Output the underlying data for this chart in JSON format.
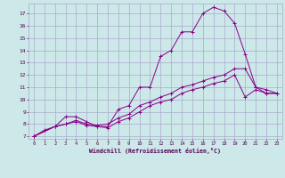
{
  "xlabel": "Windchill (Refroidissement éolien,°C)",
  "bg_color": "#cce8e8",
  "grid_color": "#aaaacc",
  "line_color": "#880088",
  "xlim": [
    -0.5,
    23.5
  ],
  "ylim": [
    6.8,
    17.8
  ],
  "xticks": [
    0,
    1,
    2,
    3,
    4,
    5,
    6,
    7,
    8,
    9,
    10,
    11,
    12,
    13,
    14,
    15,
    16,
    17,
    18,
    19,
    20,
    21,
    22,
    23
  ],
  "yticks": [
    7,
    8,
    9,
    10,
    11,
    12,
    13,
    14,
    15,
    16,
    17
  ],
  "curves": [
    {
      "x": [
        0,
        1,
        2,
        3,
        4,
        5,
        6,
        7,
        8,
        9,
        10,
        11,
        12,
        13,
        14,
        15,
        16,
        17,
        18,
        19,
        20,
        21,
        22,
        23
      ],
      "y": [
        7.0,
        7.5,
        7.8,
        8.6,
        8.6,
        8.2,
        7.8,
        7.8,
        9.2,
        9.5,
        11.0,
        11.0,
        13.5,
        14.0,
        15.5,
        15.5,
        17.0,
        17.5,
        17.2,
        16.2,
        13.7,
        11.0,
        10.5,
        10.5
      ]
    },
    {
      "x": [
        0,
        2,
        3,
        4,
        5,
        6,
        7,
        8,
        9,
        10,
        11,
        12,
        13,
        14,
        15,
        16,
        17,
        18,
        19,
        20,
        21,
        22,
        23
      ],
      "y": [
        7.0,
        7.8,
        8.0,
        8.3,
        8.0,
        7.9,
        8.0,
        8.5,
        8.8,
        9.5,
        9.8,
        10.2,
        10.5,
        11.0,
        11.2,
        11.5,
        11.8,
        12.0,
        12.5,
        12.5,
        11.0,
        10.8,
        10.5
      ]
    },
    {
      "x": [
        0,
        2,
        3,
        4,
        5,
        6,
        7,
        8,
        9,
        10,
        11,
        12,
        13,
        14,
        15,
        16,
        17,
        18,
        19,
        20,
        21,
        22,
        23
      ],
      "y": [
        7.0,
        7.8,
        8.0,
        8.2,
        7.9,
        7.8,
        7.7,
        8.2,
        8.5,
        9.0,
        9.5,
        9.8,
        10.0,
        10.5,
        10.8,
        11.0,
        11.3,
        11.5,
        12.0,
        10.2,
        10.8,
        10.5,
        10.5
      ]
    }
  ]
}
